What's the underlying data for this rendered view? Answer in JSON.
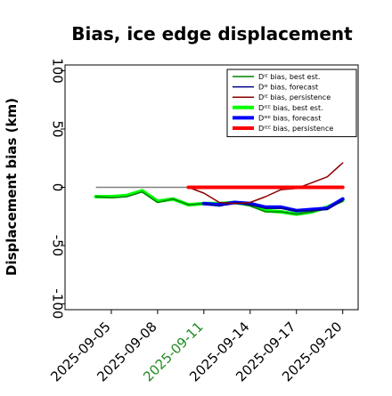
{
  "chart_data": {
    "type": "line",
    "title": "Bias, ice edge displacement",
    "ylabel": "Displacement bias (km)",
    "xlabel": "",
    "ylim": [
      -105,
      105
    ],
    "yticks": [
      -100,
      -50,
      0,
      50,
      100
    ],
    "ytick_labels": [
      "-100",
      "-50",
      "0",
      "50",
      "100"
    ],
    "xlim": [
      "2025-09-02",
      "2025-09-21"
    ],
    "xticks": [
      "2025-09-05",
      "2025-09-08",
      "2025-09-11",
      "2025-09-14",
      "2025-09-17",
      "2025-09-20"
    ],
    "xtick_labels": [
      "2025-09-05",
      "2025-09-08",
      "2025-09-11",
      "2025-09-14",
      "2025-09-17",
      "2025-09-20"
    ],
    "highlight_tick": "2025-09-11",
    "highlight_color": "#228b22",
    "zero_line": {
      "from": "2025-09-04",
      "to": "2025-09-20",
      "y": 0,
      "color": "#808080"
    },
    "legend_position": "top-right",
    "grid": false,
    "series": [
      {
        "name": "Dᴵᴱ bias, best est.",
        "color": "#008000",
        "width": 1.5,
        "x": [
          "2025-09-04",
          "2025-09-05",
          "2025-09-06",
          "2025-09-07",
          "2025-09-08",
          "2025-09-09",
          "2025-09-10",
          "2025-09-11",
          "2025-09-12",
          "2025-09-13",
          "2025-09-14",
          "2025-09-15",
          "2025-09-16",
          "2025-09-17",
          "2025-09-18",
          "2025-09-19",
          "2025-09-20"
        ],
        "y": [
          -8,
          -9,
          -8,
          -4,
          -13,
          -10,
          -15,
          -14,
          -15,
          -13,
          -16,
          -21,
          -21,
          -23,
          -21,
          -18,
          -12
        ]
      },
      {
        "name": "Dᴵᴱ bias, forecast",
        "color": "#00008b",
        "width": 1.5,
        "x": [
          "2025-09-11",
          "2025-09-12",
          "2025-09-13",
          "2025-09-14",
          "2025-09-15",
          "2025-09-16",
          "2025-09-17",
          "2025-09-18",
          "2025-09-19",
          "2025-09-20"
        ],
        "y": [
          -14,
          -16,
          -13,
          -15,
          -18,
          -18,
          -20,
          -20,
          -19,
          -11
        ]
      },
      {
        "name": "Dᴵᴱ bias, persistence",
        "color": "#8b0000",
        "width": 1.5,
        "x": [
          "2025-09-10",
          "2025-09-11",
          "2025-09-12",
          "2025-09-13",
          "2025-09-14",
          "2025-09-15",
          "2025-09-16",
          "2025-09-17",
          "2025-09-18",
          "2025-09-19",
          "2025-09-20"
        ],
        "y": [
          0,
          -5,
          -13,
          -14,
          -13,
          -8,
          -2,
          -1,
          4,
          9,
          21
        ]
      },
      {
        "name": "Dᴵᴱᴱ bias, best est.",
        "color": "#00ff00",
        "width": 4,
        "x": [
          "2025-09-04",
          "2025-09-05",
          "2025-09-06",
          "2025-09-07",
          "2025-09-08",
          "2025-09-09",
          "2025-09-10",
          "2025-09-11",
          "2025-09-12",
          "2025-09-13",
          "2025-09-14",
          "2025-09-15",
          "2025-09-16",
          "2025-09-17",
          "2025-09-18",
          "2025-09-19",
          "2025-09-20"
        ],
        "y": [
          -8,
          -8,
          -7,
          -3,
          -12,
          -10,
          -15,
          -14,
          -14,
          -13,
          -15,
          -20,
          -21,
          -23,
          -21,
          -17,
          -11
        ]
      },
      {
        "name": "Dᴵᴱᴱ bias, forecast",
        "color": "#0000ff",
        "width": 4,
        "x": [
          "2025-09-11",
          "2025-09-12",
          "2025-09-13",
          "2025-09-14",
          "2025-09-15",
          "2025-09-16",
          "2025-09-17",
          "2025-09-18",
          "2025-09-19",
          "2025-09-20"
        ],
        "y": [
          -14,
          -15,
          -13,
          -14,
          -17,
          -17,
          -20,
          -19,
          -18,
          -10
        ]
      },
      {
        "name": "Dᴵᴱᴱ bias, persistence",
        "color": "#ff0000",
        "width": 4,
        "x": [
          "2025-09-10",
          "2025-09-20"
        ],
        "y": [
          0,
          0
        ]
      }
    ]
  }
}
